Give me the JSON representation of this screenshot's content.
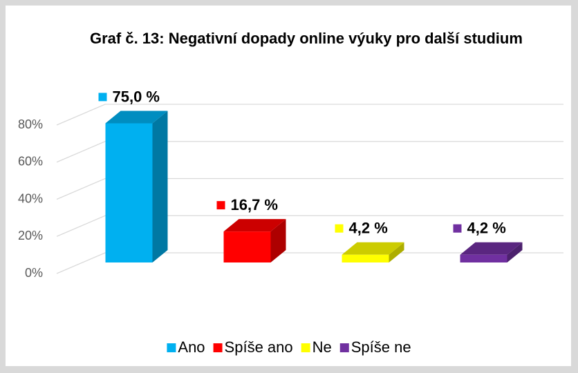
{
  "chart_data": {
    "type": "bar3d",
    "title": "Graf č. 13: Negativní dopady online výuky pro další studium",
    "categories": [
      "Ano",
      "Spíše ano",
      "Ne",
      "Spíše ne"
    ],
    "values": [
      75.0,
      16.7,
      4.2,
      4.2
    ],
    "value_labels": [
      "75,0 %",
      "16,7 %",
      "4,2 %",
      "4,2 %"
    ],
    "colors": [
      "#00b0f0",
      "#ff0000",
      "#ffff00",
      "#7030a0"
    ],
    "ylim": [
      0,
      80
    ],
    "yticks": [
      {
        "value": 0,
        "label": "0%"
      },
      {
        "value": 20,
        "label": "20%"
      },
      {
        "value": 40,
        "label": "40%"
      },
      {
        "value": 60,
        "label": "60%"
      },
      {
        "value": 80,
        "label": "80%"
      }
    ],
    "grid": true,
    "legend": "bottom"
  }
}
